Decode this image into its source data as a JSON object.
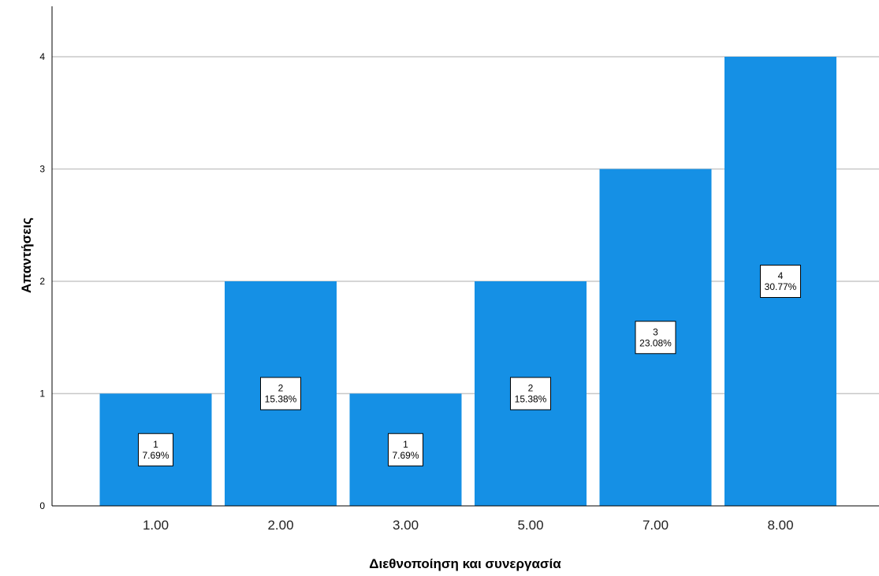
{
  "chart_data": {
    "type": "bar",
    "xlabel": "Διεθνοποίηση και συνεργασία",
    "ylabel": "Απαντήσεις",
    "categories": [
      "1.00",
      "2.00",
      "3.00",
      "5.00",
      "7.00",
      "8.00"
    ],
    "values": [
      1,
      2,
      1,
      2,
      3,
      4
    ],
    "percent_labels": [
      "7.69%",
      "15.38%",
      "7.69%",
      "15.38%",
      "23.08%",
      "30.77%"
    ],
    "count_labels": [
      "1",
      "2",
      "1",
      "2",
      "3",
      "4"
    ],
    "yticks": [
      "0",
      "1",
      "2",
      "3",
      "4"
    ],
    "ylim": [
      0,
      4.45
    ],
    "grid": true,
    "bar_color": "#1590E5"
  }
}
